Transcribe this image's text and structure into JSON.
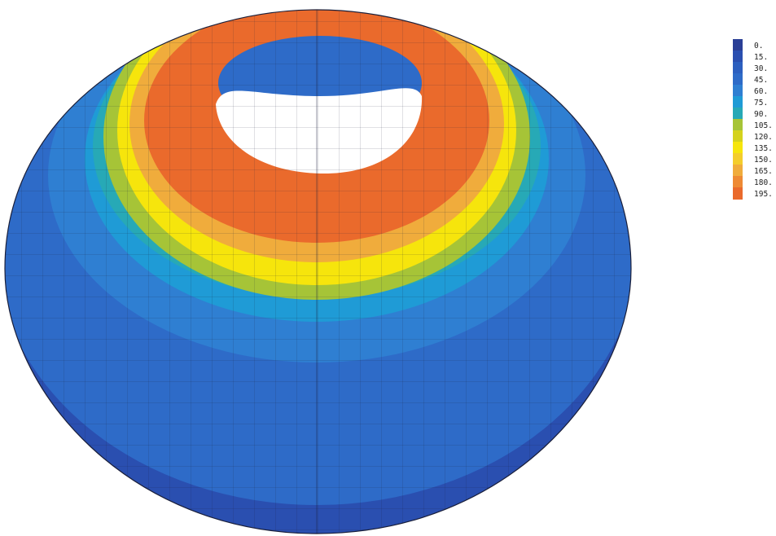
{
  "legend": {
    "levels": [
      {
        "label": "0.",
        "color": "#2a3f96"
      },
      {
        "label": "15.",
        "color": "#2a4fb0"
      },
      {
        "label": "30.",
        "color": "#2c5fbf"
      },
      {
        "label": "45.",
        "color": "#2e6bc8"
      },
      {
        "label": "60.",
        "color": "#2f7fd2"
      },
      {
        "label": "75.",
        "color": "#1f9bd6"
      },
      {
        "label": "90.",
        "color": "#27a9b6"
      },
      {
        "label": "105.",
        "color": "#a6c437"
      },
      {
        "label": "120.",
        "color": "#d4d21c"
      },
      {
        "label": "135.",
        "color": "#f6e50c"
      },
      {
        "label": "150.",
        "color": "#f4cd2c"
      },
      {
        "label": "165.",
        "color": "#f0ac3c"
      },
      {
        "label": "180.",
        "color": "#ee8a34"
      },
      {
        "label": "195.",
        "color": "#ea6a2c"
      }
    ]
  },
  "colors": {
    "dark_blue": "#2a4fb0",
    "mid_blue": "#2e6bc8",
    "light_blue": "#2f7fd2",
    "cyan": "#1f9bd6",
    "teal": "#27a9b6",
    "yellow_green": "#a6c437",
    "yellow": "#f6e50c",
    "light_orange": "#f0ac3c",
    "orange": "#ea6a2c",
    "mesh_line": "#1a1f3a"
  }
}
